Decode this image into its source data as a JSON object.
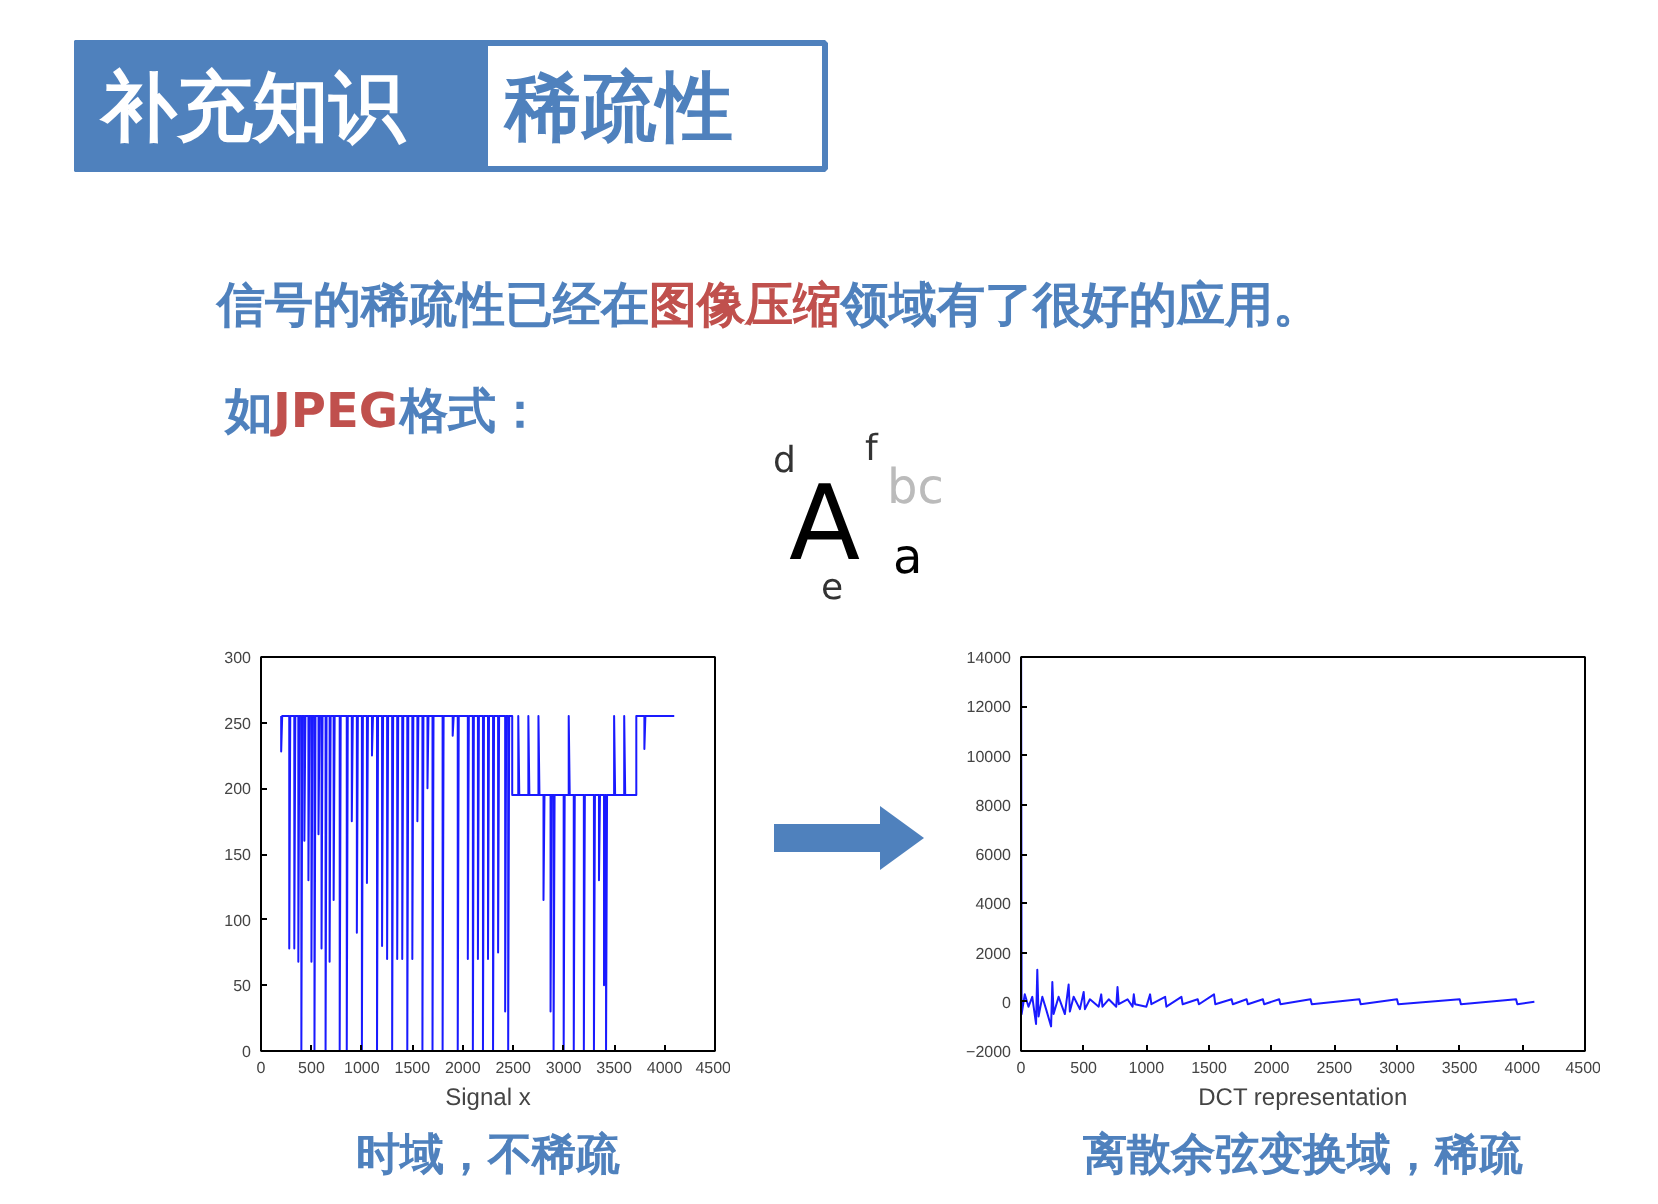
{
  "chart_data": [
    {
      "type": "other",
      "title": "补充知识",
      "subtitle": "稀疏性",
      "annotations": [
        "信号的稀疏性已经在",
        "图像压缩",
        "领域有了很好的应用。",
        "如",
        "JPEG",
        "格式：",
        "A",
        "d",
        "f",
        "bc",
        "a",
        "e"
      ]
    },
    {
      "type": "line",
      "title": "时域，不稀疏",
      "xlabel": "Signal x",
      "color": "#1a1aff",
      "xlim": [
        0,
        4500
      ],
      "ylim": [
        0,
        300
      ],
      "xticks": [
        0,
        500,
        1000,
        1500,
        2000,
        2500,
        3000,
        3500,
        4000,
        4500
      ],
      "yticks": [
        0,
        50,
        100,
        150,
        200,
        250,
        300
      ],
      "grid": false,
      "x": [
        200,
        200,
        210,
        280,
        280,
        290,
        330,
        330,
        340,
        370,
        370,
        380,
        400,
        400,
        410,
        430,
        430,
        440,
        470,
        470,
        480,
        500,
        500,
        510,
        530,
        530,
        540,
        570,
        570,
        580,
        600,
        600,
        610,
        640,
        640,
        650,
        680,
        680,
        690,
        720,
        720,
        730,
        780,
        780,
        790,
        850,
        850,
        860,
        900,
        900,
        910,
        950,
        950,
        960,
        1000,
        1000,
        1010,
        1050,
        1050,
        1060,
        1100,
        1100,
        1110,
        1150,
        1150,
        1160,
        1200,
        1200,
        1210,
        1250,
        1250,
        1260,
        1300,
        1300,
        1310,
        1350,
        1350,
        1360,
        1400,
        1400,
        1410,
        1450,
        1450,
        1460,
        1500,
        1500,
        1510,
        1550,
        1550,
        1560,
        1600,
        1600,
        1610,
        1650,
        1650,
        1660,
        1700,
        1700,
        1710,
        1800,
        1800,
        1810,
        1900,
        1900,
        1910,
        1950,
        1950,
        1960,
        2050,
        2050,
        2060,
        2100,
        2100,
        2110,
        2150,
        2150,
        2160,
        2200,
        2200,
        2210,
        2250,
        2250,
        2260,
        2300,
        2300,
        2310,
        2350,
        2350,
        2360,
        2420,
        2420,
        2430,
        2450,
        2450,
        2460,
        2490,
        2490,
        2550,
        2550,
        2560,
        2650,
        2650,
        2660,
        2750,
        2750,
        2760,
        2800,
        2800,
        2810,
        2870,
        2870,
        2880,
        2900,
        2900,
        2910,
        3000,
        3000,
        3010,
        3050,
        3050,
        3060,
        3100,
        3100,
        3110,
        3200,
        3200,
        3210,
        3300,
        3300,
        3310,
        3350,
        3350,
        3360,
        3400,
        3400,
        3410,
        3420,
        3420,
        3430,
        3500,
        3500,
        3510,
        3600,
        3600,
        3610,
        3720,
        3720,
        3800,
        3800,
        3810,
        4096
      ],
      "values": [
        255,
        228,
        255,
        255,
        78,
        255,
        255,
        78,
        255,
        255,
        68,
        255,
        255,
        0,
        255,
        255,
        160,
        255,
        255,
        130,
        255,
        255,
        68,
        255,
        255,
        0,
        255,
        255,
        165,
        255,
        255,
        78,
        255,
        255,
        0,
        255,
        255,
        68,
        255,
        255,
        115,
        255,
        255,
        0,
        255,
        255,
        0,
        255,
        255,
        175,
        255,
        255,
        90,
        255,
        255,
        0,
        255,
        255,
        128,
        255,
        255,
        225,
        255,
        255,
        0,
        255,
        255,
        80,
        255,
        255,
        70,
        255,
        255,
        0,
        255,
        255,
        70,
        255,
        255,
        70,
        255,
        255,
        0,
        255,
        255,
        70,
        255,
        255,
        175,
        255,
        255,
        0,
        255,
        255,
        200,
        255,
        255,
        0,
        255,
        255,
        0,
        255,
        255,
        240,
        255,
        255,
        0,
        255,
        255,
        70,
        255,
        255,
        0,
        255,
        255,
        70,
        255,
        255,
        0,
        255,
        255,
        70,
        255,
        255,
        0,
        255,
        255,
        75,
        255,
        255,
        30,
        255,
        255,
        0,
        255,
        255,
        195,
        195,
        255,
        195,
        195,
        255,
        195,
        195,
        255,
        195,
        195,
        115,
        195,
        195,
        30,
        195,
        195,
        0,
        195,
        195,
        0,
        195,
        195,
        255,
        195,
        195,
        0,
        195,
        195,
        0,
        195,
        195,
        0,
        195,
        195,
        130,
        195,
        195,
        50,
        195,
        195,
        0,
        195,
        195,
        255,
        195,
        195,
        255,
        195,
        195,
        255,
        255,
        230,
        255,
        255
      ]
    },
    {
      "type": "line",
      "title": "离散余弦变换域，稀疏",
      "xlabel": "DCT representation",
      "color": "#1a1aff",
      "xlim": [
        0,
        4500
      ],
      "ylim": [
        -2000,
        14000
      ],
      "xticks": [
        0,
        500,
        1000,
        1500,
        2000,
        2500,
        3000,
        3500,
        4000,
        4500
      ],
      "yticks": [
        -2000,
        0,
        2000,
        4000,
        6000,
        8000,
        10000,
        12000,
        14000
      ],
      "grid": false,
      "x": [
        1,
        5,
        30,
        60,
        90,
        120,
        130,
        140,
        170,
        200,
        240,
        250,
        260,
        300,
        350,
        380,
        390,
        420,
        470,
        500,
        510,
        550,
        620,
        640,
        650,
        700,
        760,
        770,
        780,
        850,
        890,
        900,
        910,
        1000,
        1030,
        1040,
        1150,
        1160,
        1280,
        1290,
        1410,
        1420,
        1540,
        1550,
        1680,
        1690,
        1800,
        1810,
        1930,
        1940,
        2060,
        2070,
        2310,
        2320,
        2700,
        2710,
        3000,
        3010,
        3500,
        3510,
        3950,
        3960,
        4096
      ],
      "values": [
        14000,
        -500,
        300,
        -200,
        200,
        -900,
        1300,
        -600,
        200,
        -300,
        -1000,
        800,
        -500,
        200,
        -500,
        700,
        -400,
        200,
        -300,
        400,
        -300,
        100,
        -200,
        300,
        -200,
        100,
        -200,
        600,
        -100,
        100,
        -200,
        300,
        -100,
        -200,
        300,
        -100,
        200,
        -200,
        200,
        -100,
        100,
        -100,
        300,
        -100,
        100,
        -100,
        100,
        -100,
        100,
        -100,
        100,
        -100,
        100,
        -100,
        100,
        -100,
        100,
        -100,
        100,
        -100,
        100,
        -100,
        0
      ]
    }
  ]
}
